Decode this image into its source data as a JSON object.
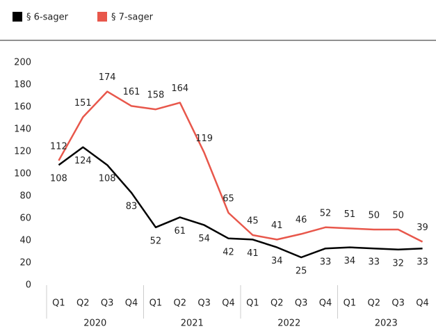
{
  "chart_data": {
    "type": "line",
    "categories": [
      "Q1",
      "Q2",
      "Q3",
      "Q4",
      "Q1",
      "Q2",
      "Q3",
      "Q4",
      "Q1",
      "Q2",
      "Q3",
      "Q4",
      "Q1",
      "Q2",
      "Q3",
      "Q4"
    ],
    "groups": [
      "2020",
      "2021",
      "2022",
      "2023"
    ],
    "series": [
      {
        "name": "§ 6-sager",
        "color": "#000000",
        "values": [
          108,
          124,
          108,
          83,
          52,
          61,
          54,
          42,
          41,
          34,
          25,
          33,
          34,
          33,
          32,
          33
        ]
      },
      {
        "name": "§ 7-sager",
        "color": "#e8574b",
        "values": [
          112,
          151,
          174,
          161,
          158,
          164,
          119,
          65,
          45,
          41,
          46,
          52,
          51,
          50,
          50,
          39
        ]
      }
    ],
    "ylim": [
      0,
      200
    ],
    "yticks": [
      0,
      20,
      40,
      60,
      80,
      100,
      120,
      140,
      160,
      180,
      200
    ],
    "grid": false,
    "legend": "top-left"
  }
}
